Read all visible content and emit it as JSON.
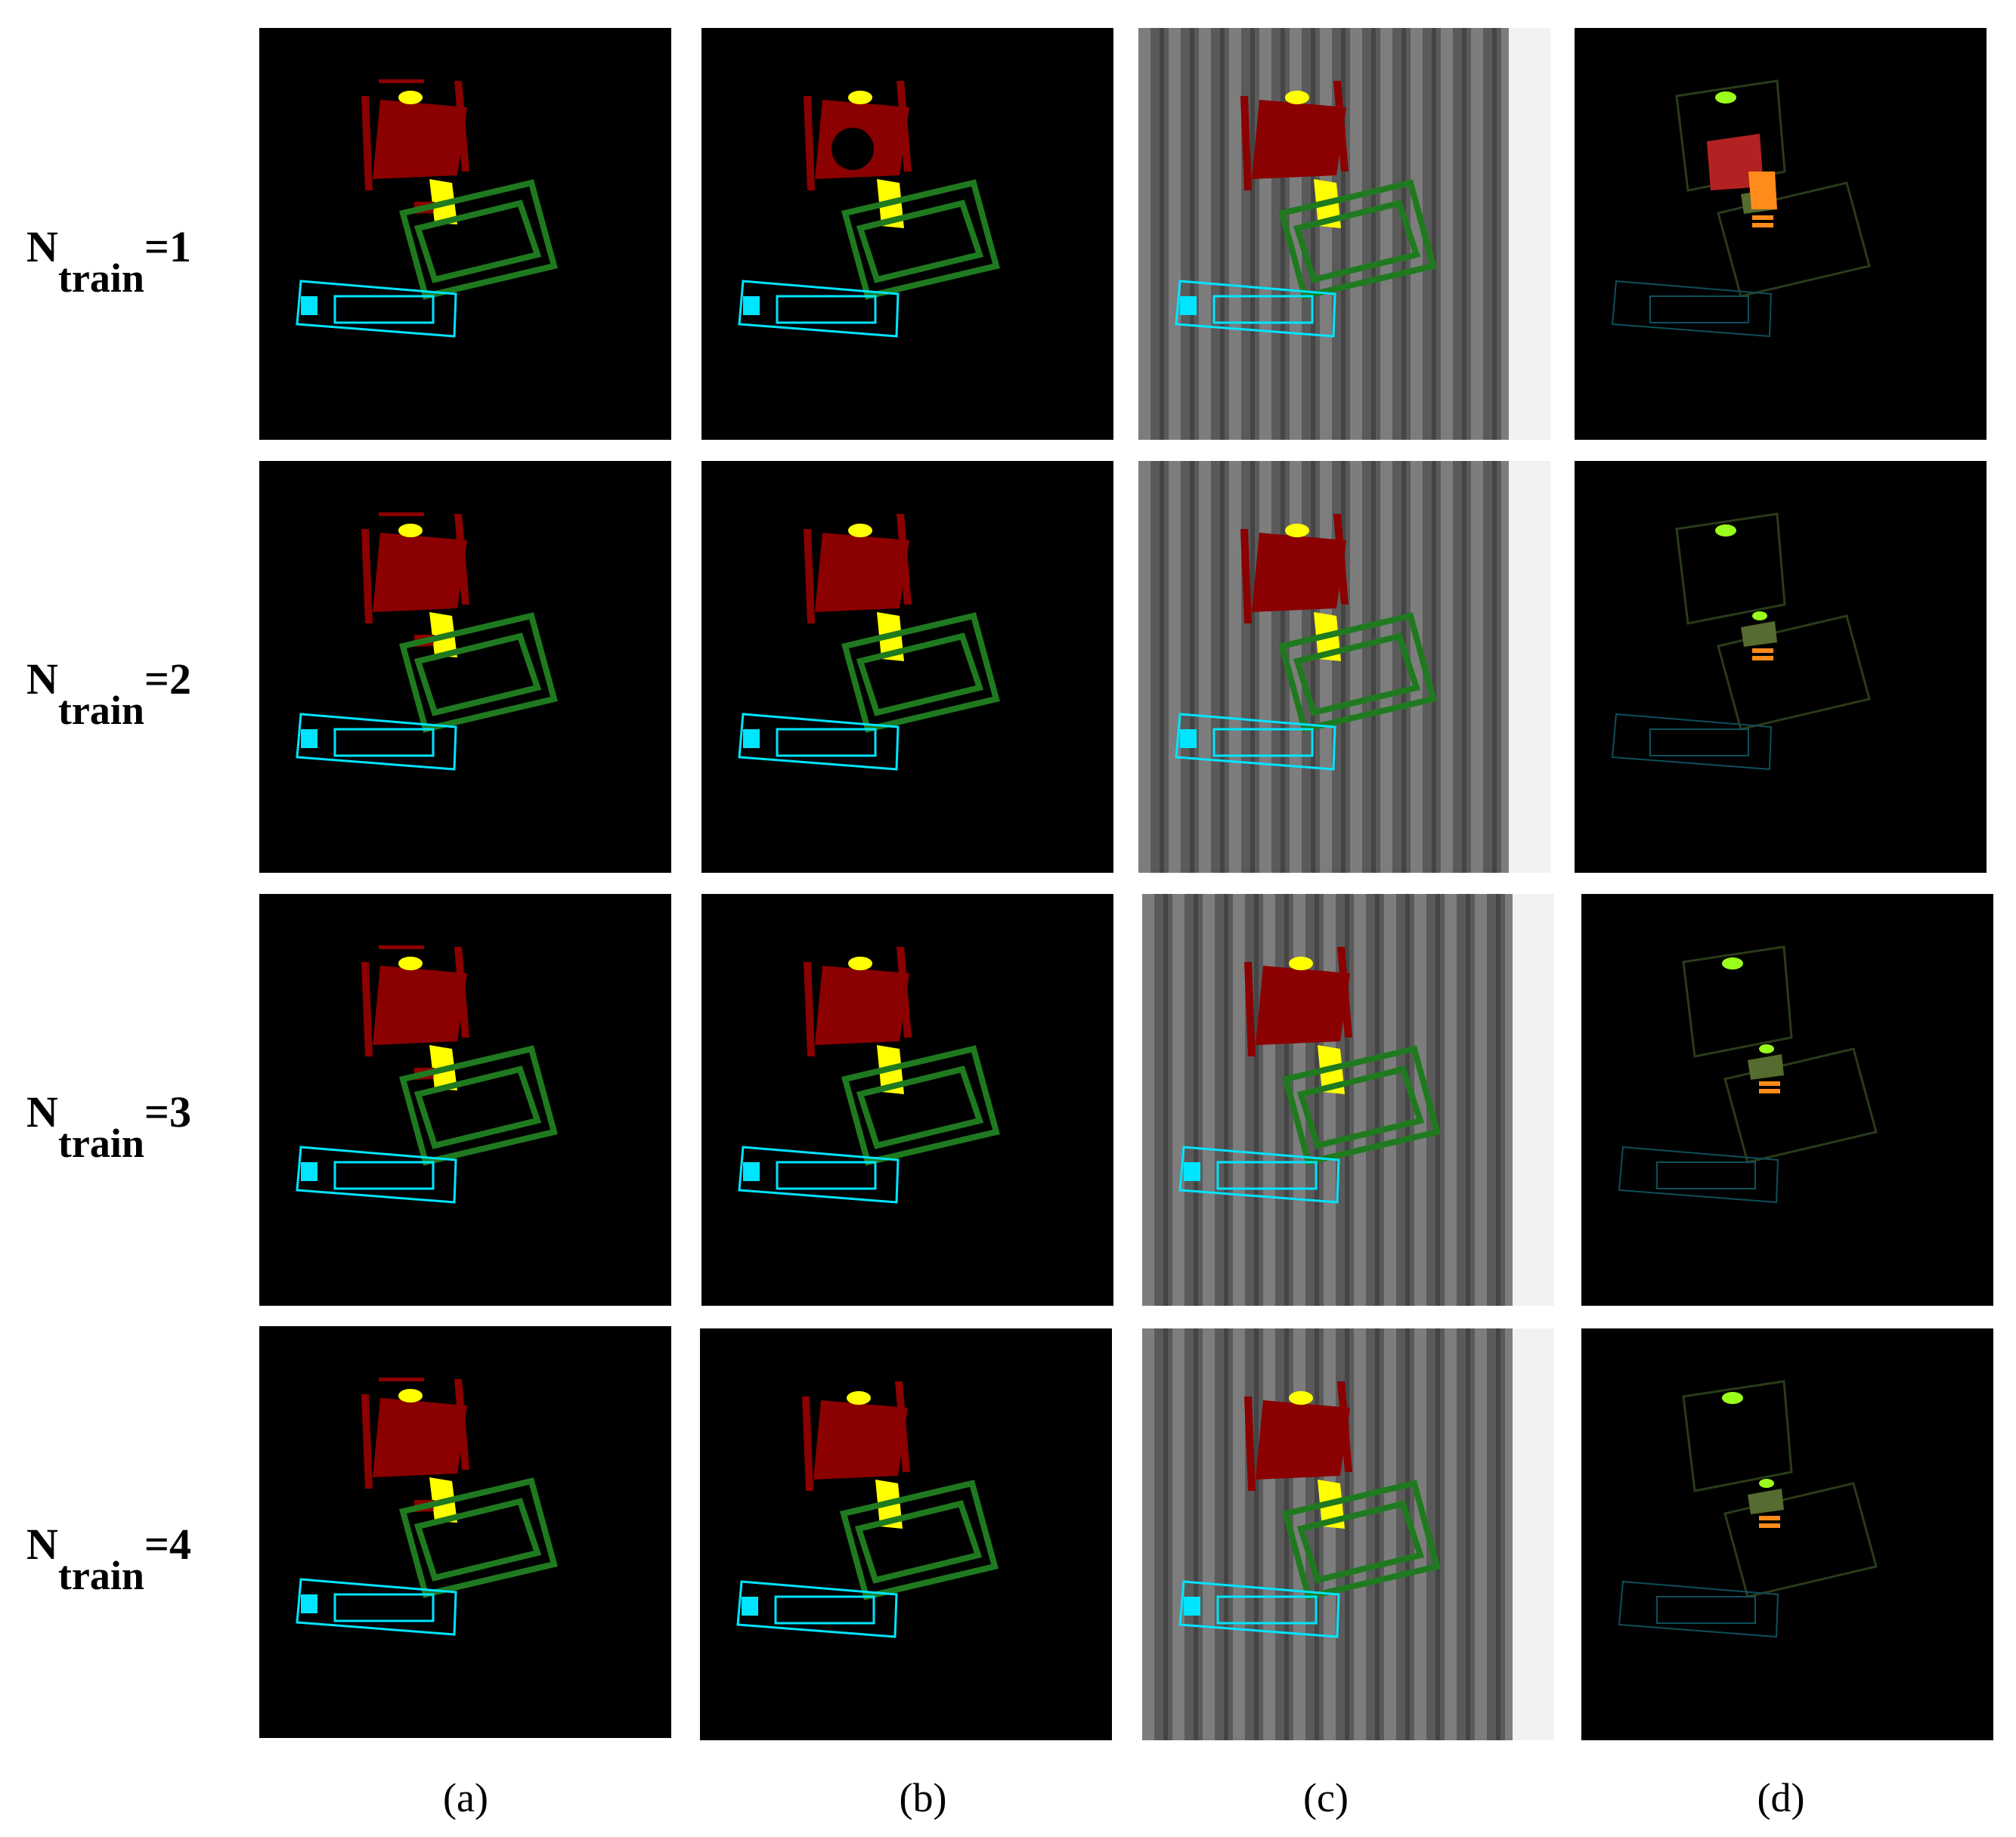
{
  "rows": [
    {
      "n_symbol": "N",
      "n_subscript": "train",
      "n_value": "=1"
    },
    {
      "n_symbol": "N",
      "n_subscript": "train",
      "n_value": "=2"
    },
    {
      "n_symbol": "N",
      "n_subscript": "train",
      "n_value": "=3"
    },
    {
      "n_symbol": "N",
      "n_subscript": "train",
      "n_value": "=4"
    }
  ],
  "columns": [
    {
      "label": "(a)"
    },
    {
      "label": "(b)"
    },
    {
      "label": "(c)"
    },
    {
      "label": "(d)"
    }
  ],
  "segment_colors": {
    "dark_red": "#8b0000",
    "yellow": "#ffff00",
    "green": "#1f7a1f",
    "cyan": "#00e5ff",
    "orange": "#ff8c1a",
    "lime": "#9aff1a",
    "background": "#000000"
  }
}
